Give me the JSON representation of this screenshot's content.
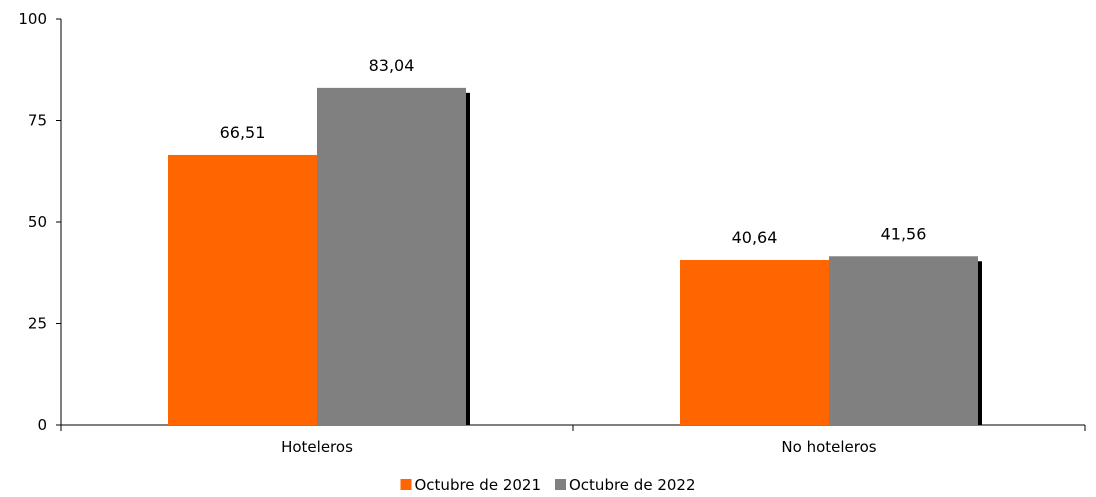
{
  "chart_data": {
    "type": "bar",
    "categories": [
      "Hoteleros",
      "No hoteleros"
    ],
    "series": [
      {
        "name": "Octubre de 2021",
        "values": [
          66.51,
          40.64
        ],
        "labels": [
          "66,51",
          "40,64"
        ],
        "color": "#ff6600"
      },
      {
        "name": "Octubre de 2022",
        "values": [
          83.04,
          41.56
        ],
        "labels": [
          "83,04",
          "41,56"
        ],
        "color": "#808080"
      }
    ],
    "ylim": [
      0,
      100
    ],
    "yticks": [
      0,
      25,
      50,
      75,
      100
    ],
    "ytick_labels": [
      "0",
      "25",
      "50",
      "75",
      "100"
    ],
    "grid": false,
    "legend": "bottom-center"
  }
}
